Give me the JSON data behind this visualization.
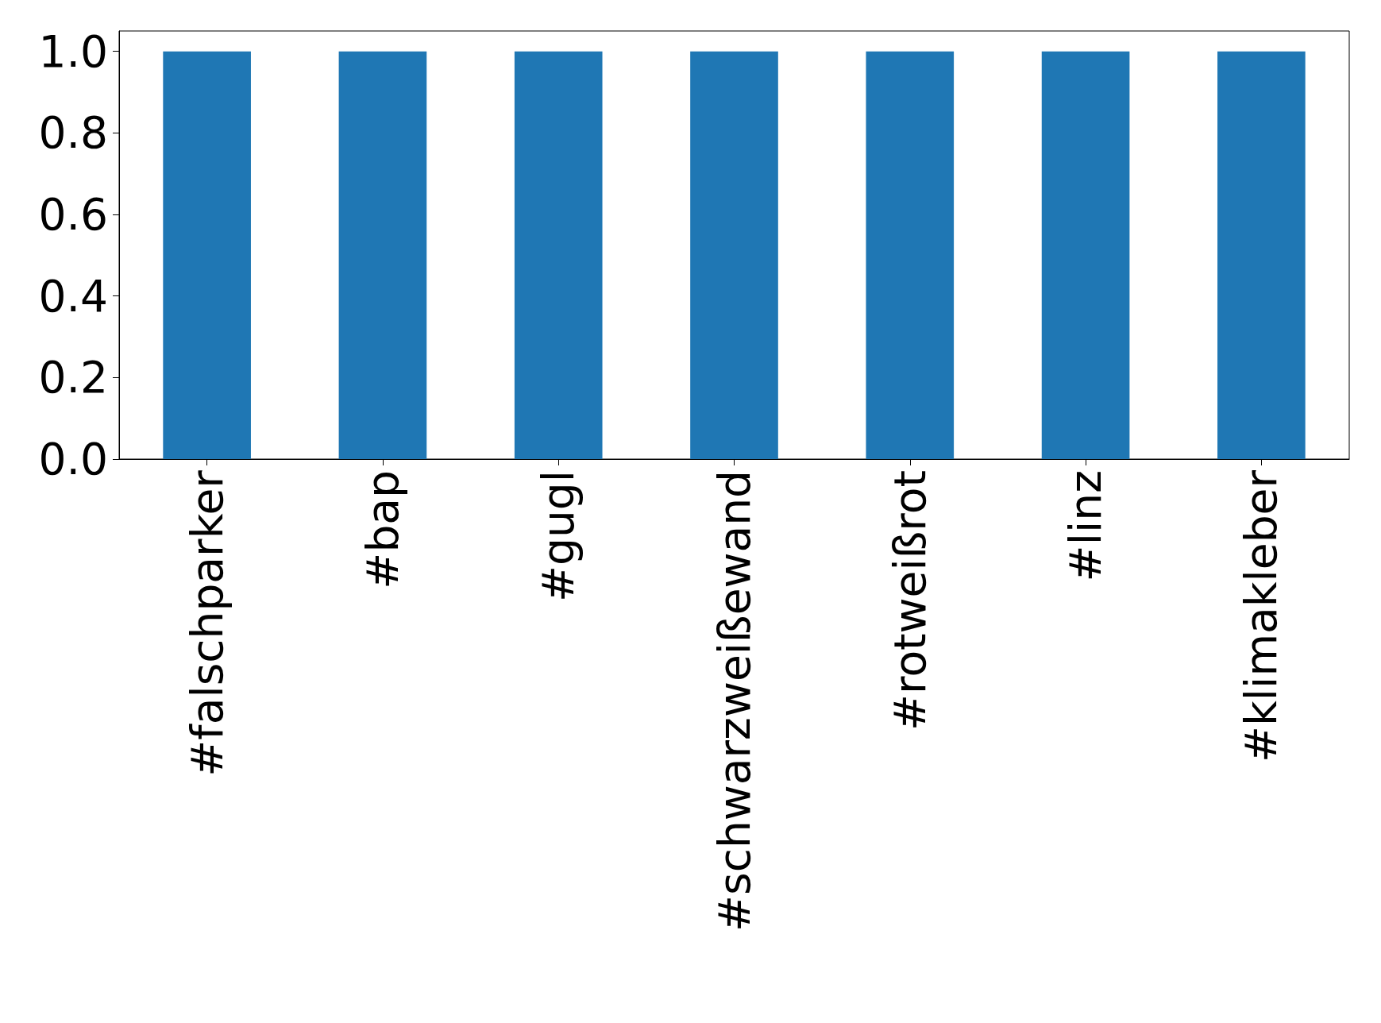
{
  "chart_data": {
    "type": "bar",
    "categories": [
      "#falschparker",
      "#bap",
      "#gugl",
      "#schwarzweißewand",
      "#rotweißrot",
      "#linz",
      "#klimakleber"
    ],
    "values": [
      1,
      1,
      1,
      1,
      1,
      1,
      1
    ],
    "color": "#1f77b4",
    "ylim": [
      0,
      1.05
    ],
    "yticks": [
      {
        "value": 0,
        "label": "0.0"
      },
      {
        "value": 0.2,
        "label": "0.2"
      },
      {
        "value": 0.4,
        "label": "0.4"
      },
      {
        "value": 0.6,
        "label": "0.6"
      },
      {
        "value": 0.8,
        "label": "0.8"
      },
      {
        "value": 1,
        "label": "1.0"
      }
    ],
    "grid": false
  }
}
